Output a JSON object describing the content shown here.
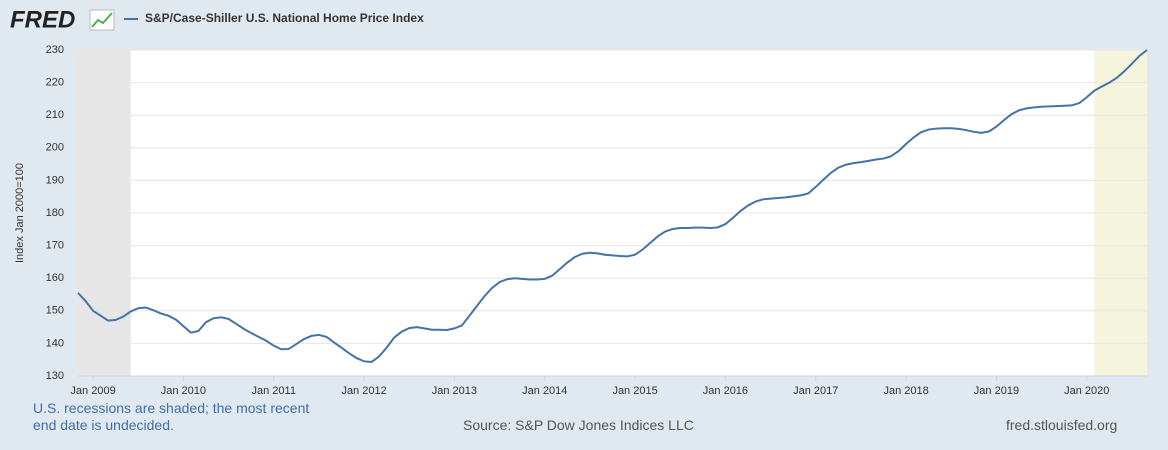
{
  "chart_data": {
    "type": "line",
    "logo": "FRED",
    "ylabel": "Index Jan 2000=100",
    "note": "U.S. recessions are shaded; the most recent end date is undecided.",
    "source": "Source: S&P Dow Jones Indices LLC",
    "site": "fred.stlouisfed.org",
    "xlim": [
      "2008-11",
      "2020-09"
    ],
    "ylim": [
      130,
      230
    ],
    "yticks": [
      130,
      140,
      150,
      160,
      170,
      180,
      190,
      200,
      210,
      220,
      230
    ],
    "xticks": [
      {
        "value": "2009-01",
        "label": "Jan 2009"
      },
      {
        "value": "2010-01",
        "label": "Jan 2010"
      },
      {
        "value": "2011-01",
        "label": "Jan 2011"
      },
      {
        "value": "2012-01",
        "label": "Jan 2012"
      },
      {
        "value": "2013-01",
        "label": "Jan 2013"
      },
      {
        "value": "2014-01",
        "label": "Jan 2014"
      },
      {
        "value": "2015-01",
        "label": "Jan 2015"
      },
      {
        "value": "2016-01",
        "label": "Jan 2016"
      },
      {
        "value": "2017-01",
        "label": "Jan 2017"
      },
      {
        "value": "2018-01",
        "label": "Jan 2018"
      },
      {
        "value": "2019-01",
        "label": "Jan 2019"
      },
      {
        "value": "2020-01",
        "label": "Jan 2020"
      }
    ],
    "grid": true,
    "recessions": [
      {
        "start": "2008-11",
        "end": "2009-06",
        "color": "#e6e6e6"
      },
      {
        "start": "2020-02",
        "end": "2020-09",
        "color": "#f5f4dc"
      }
    ],
    "x": [
      "2008-11",
      "2008-12",
      "2009-01",
      "2009-02",
      "2009-03",
      "2009-04",
      "2009-05",
      "2009-06",
      "2009-07",
      "2009-08",
      "2009-09",
      "2009-10",
      "2009-11",
      "2009-12",
      "2010-01",
      "2010-02",
      "2010-03",
      "2010-04",
      "2010-05",
      "2010-06",
      "2010-07",
      "2010-08",
      "2010-09",
      "2010-10",
      "2010-11",
      "2010-12",
      "2011-01",
      "2011-02",
      "2011-03",
      "2011-04",
      "2011-05",
      "2011-06",
      "2011-07",
      "2011-08",
      "2011-09",
      "2011-10",
      "2011-11",
      "2011-12",
      "2012-01",
      "2012-02",
      "2012-03",
      "2012-04",
      "2012-05",
      "2012-06",
      "2012-07",
      "2012-08",
      "2012-09",
      "2012-10",
      "2012-11",
      "2012-12",
      "2013-01",
      "2013-02",
      "2013-03",
      "2013-04",
      "2013-05",
      "2013-06",
      "2013-07",
      "2013-08",
      "2013-09",
      "2013-10",
      "2013-11",
      "2013-12",
      "2014-01",
      "2014-02",
      "2014-03",
      "2014-04",
      "2014-05",
      "2014-06",
      "2014-07",
      "2014-08",
      "2014-09",
      "2014-10",
      "2014-11",
      "2014-12",
      "2015-01",
      "2015-02",
      "2015-03",
      "2015-04",
      "2015-05",
      "2015-06",
      "2015-07",
      "2015-08",
      "2015-09",
      "2015-10",
      "2015-11",
      "2015-12",
      "2016-01",
      "2016-02",
      "2016-03",
      "2016-04",
      "2016-05",
      "2016-06",
      "2016-07",
      "2016-08",
      "2016-09",
      "2016-10",
      "2016-11",
      "2016-12",
      "2017-01",
      "2017-02",
      "2017-03",
      "2017-04",
      "2017-05",
      "2017-06",
      "2017-07",
      "2017-08",
      "2017-09",
      "2017-10",
      "2017-11",
      "2017-12",
      "2018-01",
      "2018-02",
      "2018-03",
      "2018-04",
      "2018-05",
      "2018-06",
      "2018-07",
      "2018-08",
      "2018-09",
      "2018-10",
      "2018-11",
      "2018-12",
      "2019-01",
      "2019-02",
      "2019-03",
      "2019-04",
      "2019-05",
      "2019-06",
      "2019-07",
      "2019-08",
      "2019-09",
      "2019-10",
      "2019-11",
      "2019-12",
      "2020-01",
      "2020-02",
      "2020-03",
      "2020-04",
      "2020-05",
      "2020-06",
      "2020-07",
      "2020-08",
      "2020-09"
    ],
    "series": [
      {
        "name": "S&P/Case-Shiller U.S. National Home Price Index",
        "color": "#4572a7",
        "values": [
          155.5,
          153,
          150,
          148.5,
          147,
          147.2,
          148.2,
          149.8,
          150.8,
          151,
          150.2,
          149.2,
          148.5,
          147.3,
          145.3,
          143.3,
          143.8,
          146.5,
          147.7,
          148,
          147.5,
          146,
          144.5,
          143.2,
          142,
          140.8,
          139.3,
          138.2,
          138.3,
          139.8,
          141.3,
          142.3,
          142.6,
          142,
          140.3,
          138.7,
          137,
          135.5,
          134.5,
          134.3,
          136,
          138.7,
          141.8,
          143.6,
          144.7,
          145,
          144.6,
          144.2,
          144.2,
          144.1,
          144.6,
          145.5,
          148.5,
          151.5,
          154.5,
          157,
          158.8,
          159.7,
          160,
          159.8,
          159.6,
          159.6,
          159.8,
          160.8,
          162.8,
          164.8,
          166.5,
          167.5,
          167.8,
          167.6,
          167.2,
          167,
          166.8,
          166.7,
          167.2,
          168.8,
          170.8,
          172.8,
          174.3,
          175.1,
          175.4,
          175.4,
          175.5,
          175.5,
          175.4,
          175.6,
          176.6,
          178.5,
          180.6,
          182.3,
          183.5,
          184.2,
          184.4,
          184.6,
          184.8,
          185.1,
          185.4,
          186,
          188,
          190.2,
          192.3,
          193.9,
          194.8,
          195.3,
          195.6,
          196,
          196.4,
          196.7,
          197.4,
          199,
          201.2,
          203.2,
          204.8,
          205.6,
          205.9,
          206,
          206,
          205.8,
          205.4,
          204.9,
          204.6,
          205,
          206.5,
          208.5,
          210.3,
          211.5,
          212.1,
          212.4,
          212.6,
          212.7,
          212.8,
          212.9,
          213,
          213.7,
          215.5,
          217.5,
          218.8,
          220,
          221.5,
          223.5,
          225.8,
          228.2,
          230
        ]
      }
    ]
  }
}
